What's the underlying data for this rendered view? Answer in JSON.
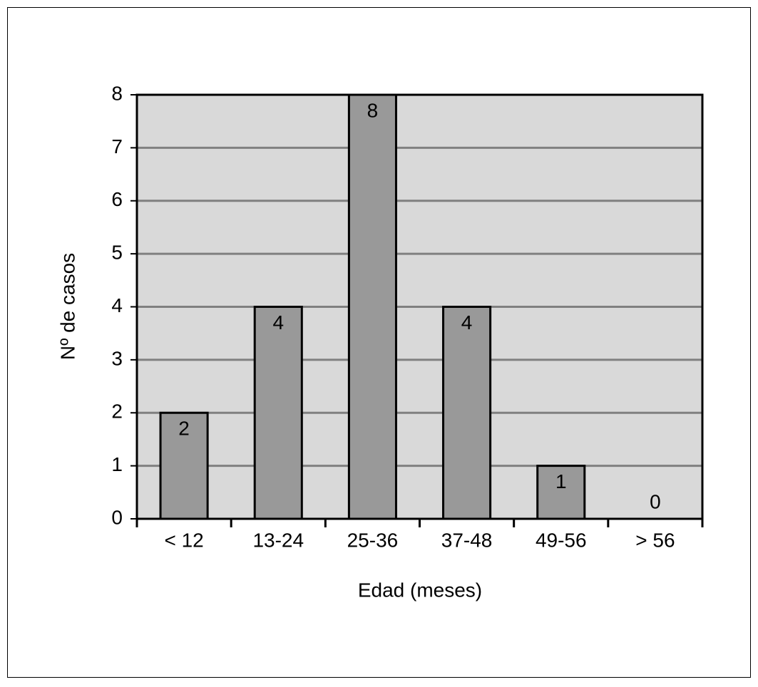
{
  "chart_data": {
    "type": "bar",
    "x_label": "Edad (meses)",
    "y_label": "Nº de casos",
    "categories": [
      "< 12",
      "13-24",
      "25-36",
      "37-48",
      "49-56",
      "> 56"
    ],
    "values": [
      2,
      4,
      8,
      4,
      1,
      0
    ],
    "color": "#999999",
    "ylim": [
      0,
      8
    ],
    "yticks": [
      0,
      1,
      2,
      3,
      4,
      5,
      6,
      7,
      8
    ],
    "grid": true
  }
}
